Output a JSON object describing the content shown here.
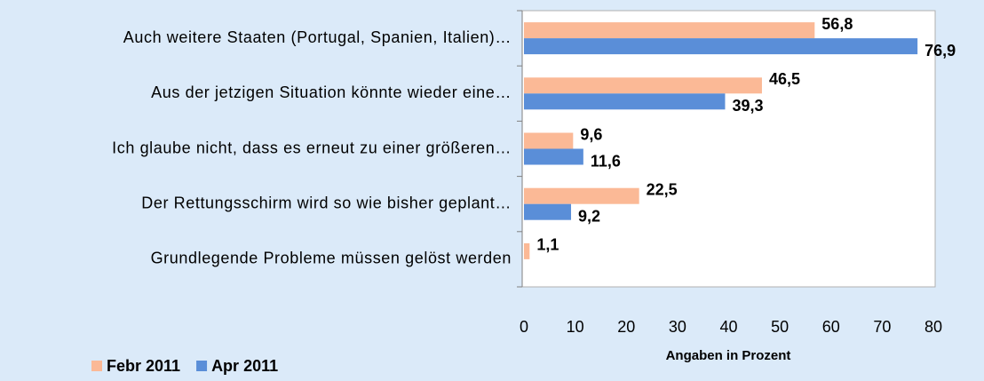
{
  "chart_data": {
    "type": "bar",
    "orientation": "horizontal",
    "categories": [
      "Auch weitere Staaten (Portugal, Spanien, Italien)…",
      "Aus der jetzigen Situation könnte wieder eine…",
      "Ich glaube nicht, dass es erneut zu einer größeren…",
      "Der Rettungsschirm wird so wie bisher geplant…",
      "Grundlegende Probleme müssen gelöst werden"
    ],
    "series": [
      {
        "name": "Febr 2011",
        "color": "#fbb996",
        "values": [
          56.8,
          46.5,
          9.6,
          22.5,
          1.1
        ],
        "value_labels": [
          "56,8",
          "46,5",
          "9,6",
          "22,5",
          "1,1"
        ]
      },
      {
        "name": "Apr 2011",
        "color": "#5a8ed8",
        "values": [
          76.9,
          39.3,
          11.6,
          9.2,
          null
        ],
        "value_labels": [
          "76,9",
          "39,3",
          "11,6",
          "9,2",
          null
        ]
      }
    ],
    "xlabel": "Angaben in Prozent",
    "xlim": [
      0,
      80
    ],
    "xticks": [
      0,
      10,
      20,
      30,
      40,
      50,
      60,
      70,
      80
    ],
    "grid": false,
    "legend": "bottom-left"
  }
}
